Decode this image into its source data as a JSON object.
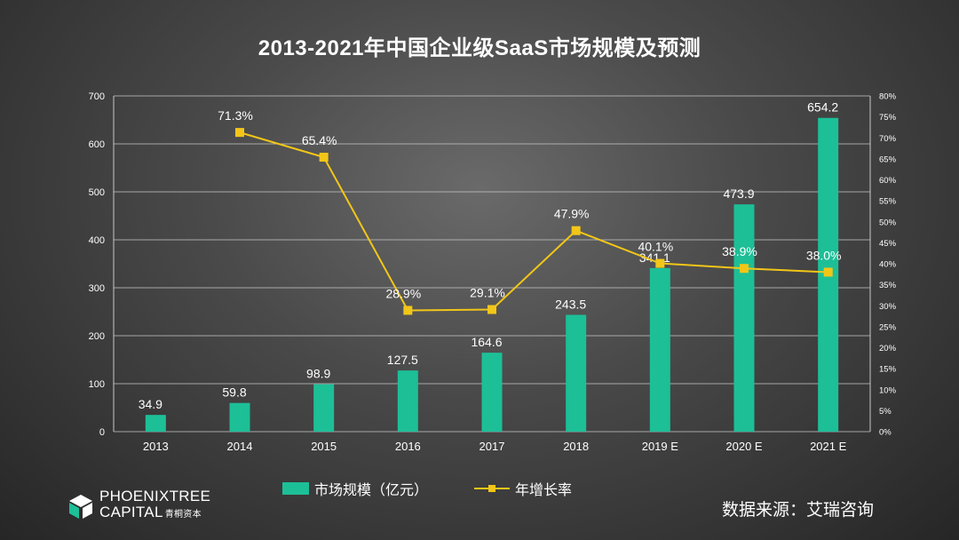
{
  "title": "2013-2021年中国企业级SaaS市场规模及预测",
  "chart_data": {
    "type": "bar+line",
    "categories": [
      "2013",
      "2014",
      "2015",
      "2016",
      "2017",
      "2018",
      "2019 E",
      "2020 E",
      "2021 E"
    ],
    "series": [
      {
        "name": "市场规模（亿元）",
        "type": "bar",
        "axis": "left",
        "color": "#1dbf97",
        "values": [
          34.9,
          59.8,
          98.9,
          127.5,
          164.6,
          243.5,
          341.1,
          473.9,
          654.2
        ],
        "labels": [
          "34.9",
          "59.8",
          "98.9",
          "127.5",
          "164.6",
          "243.5",
          "341.1",
          "473.9",
          "654.2"
        ]
      },
      {
        "name": "年增长率",
        "type": "line",
        "axis": "right",
        "color": "#f2c618",
        "values": [
          null,
          71.3,
          65.4,
          28.9,
          29.1,
          47.9,
          40.1,
          38.9,
          38.0
        ],
        "labels": [
          null,
          "71.3%",
          "65.4%",
          "28.9%",
          "29.1%",
          "47.9%",
          "40.1%",
          "38.9%",
          "38.0%"
        ]
      }
    ],
    "y_left": {
      "min": 0,
      "max": 700,
      "ticks": [
        "0",
        "100",
        "200",
        "300",
        "400",
        "500",
        "600",
        "700"
      ]
    },
    "y_right": {
      "min": 0,
      "max": 80,
      "ticks": [
        "0%",
        "5%",
        "10%",
        "15%",
        "20%",
        "25%",
        "30%",
        "35%",
        "40%",
        "45%",
        "50%",
        "55%",
        "60%",
        "65%",
        "70%",
        "75%",
        "80%"
      ]
    },
    "grid": true,
    "legend_position": "bottom"
  },
  "legend": {
    "bar_label": "市场规模（亿元）",
    "line_label": "年增长率"
  },
  "source": "数据来源：艾瑞咨询",
  "logo": {
    "line1": "PHOENIXTREE",
    "line2": "CAPITAL",
    "line2_cn": "青桐资本"
  }
}
